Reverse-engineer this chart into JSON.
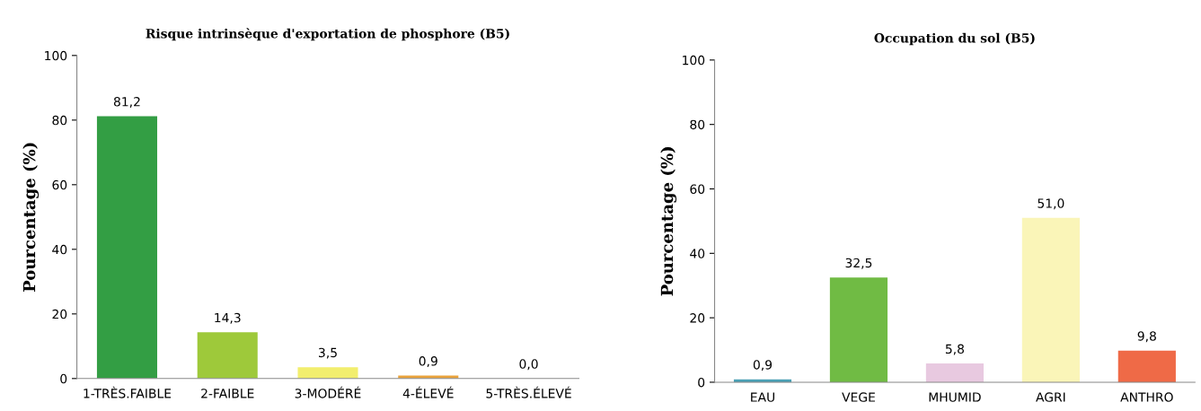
{
  "chart_data": [
    {
      "type": "bar",
      "title": "Risque intrinsèque d'exportation de phosphore (B5)",
      "ylabel": "Pourcentage (%)",
      "categories": [
        "1-TRÈS.FAIBLE",
        "2-FAIBLE",
        "3-MODÉRÉ",
        "4-ÉLEVÉ",
        "5-TRÈS.ÉLEVÉ"
      ],
      "values": [
        81.2,
        14.3,
        3.5,
        0.9,
        0.0
      ],
      "colors": [
        "#339e44",
        "#9ec93a",
        "#f2ee6e",
        "#e9a23b",
        "#e24a33"
      ],
      "value_labels": [
        "81,2",
        "14,3",
        "3,5",
        "0,9",
        "0,0"
      ],
      "ylim": [
        0,
        100
      ],
      "yticks": [
        0,
        20,
        40,
        60,
        80,
        100
      ],
      "grid": false,
      "legend": false
    },
    {
      "type": "bar",
      "title": "Occupation du sol (B5)",
      "ylabel": "Pourcentage (%)",
      "categories": [
        "EAU",
        "VEGE",
        "MHUMID",
        "AGRI",
        "ANTHRO"
      ],
      "values": [
        0.9,
        32.5,
        5.8,
        51.0,
        9.8
      ],
      "colors": [
        "#4aa0b5",
        "#70bb44",
        "#e8c9e0",
        "#faf5b8",
        "#ef6a47"
      ],
      "value_labels": [
        "0,9",
        "32,5",
        "5,8",
        "51,0",
        "9,8"
      ],
      "ylim": [
        0,
        100
      ],
      "yticks": [
        0,
        20,
        40,
        60,
        80,
        100
      ],
      "grid": false,
      "legend": false
    }
  ]
}
